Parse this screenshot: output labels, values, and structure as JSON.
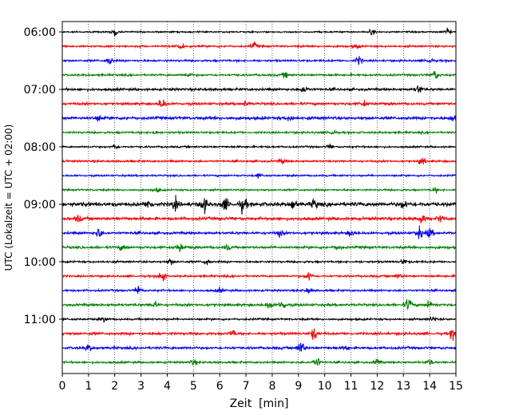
{
  "chart_data": {
    "type": "line",
    "title": "",
    "xlabel": "Zeit  [min]",
    "ylabel": "UTC (Lokalzeit = UTC + 02:00)",
    "xlim": [
      0,
      15
    ],
    "x_ticks": [
      0,
      1,
      2,
      3,
      4,
      5,
      6,
      7,
      8,
      9,
      10,
      11,
      12,
      13,
      14,
      15
    ],
    "x_tick_labels": [
      "0",
      "1",
      "2",
      "3",
      "4",
      "5",
      "6",
      "7",
      "8",
      "9",
      "10",
      "11",
      "12",
      "13",
      "14",
      "15"
    ],
    "y_tick_labels": [
      "06:00",
      "07:00",
      "08:00",
      "09:00",
      "10:00",
      "11:00"
    ],
    "grid": "vertical dotted lines at each minute",
    "color_cycle": [
      "#000000",
      "#ff0000",
      "#0000ff",
      "#008000"
    ],
    "trace_minutes": [
      "06:00",
      "06:15",
      "06:30",
      "06:45",
      "07:00",
      "07:15",
      "07:30",
      "07:45",
      "08:00",
      "08:15",
      "08:30",
      "08:45",
      "09:00",
      "09:15",
      "09:30",
      "09:45",
      "10:00",
      "10:15",
      "10:30",
      "10:45",
      "11:00",
      "11:15",
      "11:30",
      "11:45"
    ],
    "series": [
      {
        "color": "#000000",
        "noise": 1.5,
        "events": [
          {
            "t": 2.0,
            "amp": 8
          },
          {
            "t": 11.8,
            "amp": 5
          },
          {
            "t": 14.7,
            "amp": 8
          }
        ]
      },
      {
        "color": "#ff0000",
        "noise": 2.0,
        "events": [
          {
            "t": 4.5,
            "amp": 6
          },
          {
            "t": 7.3,
            "amp": 7
          },
          {
            "t": 11.2,
            "amp": 4
          }
        ]
      },
      {
        "color": "#0000ff",
        "noise": 2.0,
        "events": [
          {
            "t": 1.8,
            "amp": 8
          },
          {
            "t": 11.3,
            "amp": 8
          },
          {
            "t": 14.0,
            "amp": 5
          }
        ]
      },
      {
        "color": "#008000",
        "noise": 2.0,
        "events": [
          {
            "t": 4.8,
            "amp": 6
          },
          {
            "t": 8.5,
            "amp": 5
          },
          {
            "t": 14.2,
            "amp": 10
          }
        ]
      },
      {
        "color": "#000000",
        "noise": 2.5,
        "events": [
          {
            "t": 9.2,
            "amp": 7
          },
          {
            "t": 13.6,
            "amp": 8
          }
        ]
      },
      {
        "color": "#ff0000",
        "noise": 2.5,
        "events": [
          {
            "t": 3.8,
            "amp": 10
          },
          {
            "t": 7.0,
            "amp": 5
          },
          {
            "t": 11.5,
            "amp": 5
          }
        ]
      },
      {
        "color": "#0000ff",
        "noise": 3.0,
        "events": [
          {
            "t": 1.4,
            "amp": 6
          },
          {
            "t": 8.7,
            "amp": 6
          },
          {
            "t": 14.9,
            "amp": 6
          }
        ]
      },
      {
        "color": "#008000",
        "noise": 2.0,
        "events": [
          {
            "t": 3.5,
            "amp": 4
          },
          {
            "t": 10.3,
            "amp": 5
          }
        ]
      },
      {
        "color": "#000000",
        "noise": 1.8,
        "events": [
          {
            "t": 2.0,
            "amp": 5
          },
          {
            "t": 10.2,
            "amp": 4
          }
        ]
      },
      {
        "color": "#ff0000",
        "noise": 2.0,
        "events": [
          {
            "t": 8.4,
            "amp": 4
          },
          {
            "t": 13.7,
            "amp": 7
          }
        ]
      },
      {
        "color": "#0000ff",
        "noise": 1.8,
        "events": [
          {
            "t": 7.5,
            "amp": 4
          }
        ]
      },
      {
        "color": "#008000",
        "noise": 1.8,
        "events": [
          {
            "t": 3.6,
            "amp": 4
          },
          {
            "t": 14.2,
            "amp": 5
          }
        ]
      },
      {
        "color": "#000000",
        "noise": 4.0,
        "events": [
          {
            "t": 3.3,
            "amp": 9
          },
          {
            "t": 4.3,
            "amp": 10
          },
          {
            "t": 5.4,
            "amp": 14
          },
          {
            "t": 6.2,
            "amp": 13
          },
          {
            "t": 6.9,
            "amp": 14
          },
          {
            "t": 8.8,
            "amp": 10
          },
          {
            "t": 9.6,
            "amp": 8
          },
          {
            "t": 13.0,
            "amp": 8
          }
        ]
      },
      {
        "color": "#ff0000",
        "noise": 3.0,
        "events": [
          {
            "t": 0.6,
            "amp": 6
          },
          {
            "t": 13.7,
            "amp": 9
          },
          {
            "t": 14.4,
            "amp": 5
          }
        ]
      },
      {
        "color": "#0000ff",
        "noise": 2.5,
        "events": [
          {
            "t": 1.4,
            "amp": 10
          },
          {
            "t": 8.3,
            "amp": 6
          },
          {
            "t": 11.0,
            "amp": 6
          },
          {
            "t": 13.6,
            "amp": 12
          },
          {
            "t": 14.0,
            "amp": 10
          }
        ]
      },
      {
        "color": "#008000",
        "noise": 2.5,
        "events": [
          {
            "t": 2.3,
            "amp": 6
          },
          {
            "t": 4.5,
            "amp": 9
          },
          {
            "t": 6.3,
            "amp": 5
          },
          {
            "t": 10.5,
            "amp": 5
          }
        ]
      },
      {
        "color": "#000000",
        "noise": 2.0,
        "events": [
          {
            "t": 4.1,
            "amp": 6
          },
          {
            "t": 5.5,
            "amp": 6
          },
          {
            "t": 13.0,
            "amp": 5
          }
        ]
      },
      {
        "color": "#ff0000",
        "noise": 2.0,
        "events": [
          {
            "t": 3.8,
            "amp": 14
          },
          {
            "t": 9.4,
            "amp": 9
          },
          {
            "t": 12.8,
            "amp": 5
          }
        ]
      },
      {
        "color": "#0000ff",
        "noise": 2.0,
        "events": [
          {
            "t": 2.9,
            "amp": 9
          },
          {
            "t": 6.0,
            "amp": 4
          },
          {
            "t": 9.4,
            "amp": 5
          }
        ]
      },
      {
        "color": "#008000",
        "noise": 2.5,
        "events": [
          {
            "t": 3.5,
            "amp": 6
          },
          {
            "t": 7.9,
            "amp": 8
          },
          {
            "t": 8.4,
            "amp": 10
          },
          {
            "t": 13.2,
            "amp": 12
          },
          {
            "t": 14.0,
            "amp": 9
          }
        ]
      },
      {
        "color": "#000000",
        "noise": 2.0,
        "events": [
          {
            "t": 1.6,
            "amp": 5
          },
          {
            "t": 14.1,
            "amp": 5
          }
        ]
      },
      {
        "color": "#ff0000",
        "noise": 2.5,
        "events": [
          {
            "t": 6.5,
            "amp": 6
          },
          {
            "t": 9.6,
            "amp": 12
          },
          {
            "t": 14.9,
            "amp": 12
          }
        ]
      },
      {
        "color": "#0000ff",
        "noise": 2.5,
        "events": [
          {
            "t": 1.0,
            "amp": 6
          },
          {
            "t": 9.1,
            "amp": 14
          },
          {
            "t": 10.8,
            "amp": 6
          }
        ]
      },
      {
        "color": "#008000",
        "noise": 2.0,
        "events": [
          {
            "t": 5.0,
            "amp": 5
          },
          {
            "t": 9.7,
            "amp": 10
          },
          {
            "t": 12.0,
            "amp": 6
          },
          {
            "t": 14.0,
            "amp": 6
          }
        ]
      }
    ]
  }
}
